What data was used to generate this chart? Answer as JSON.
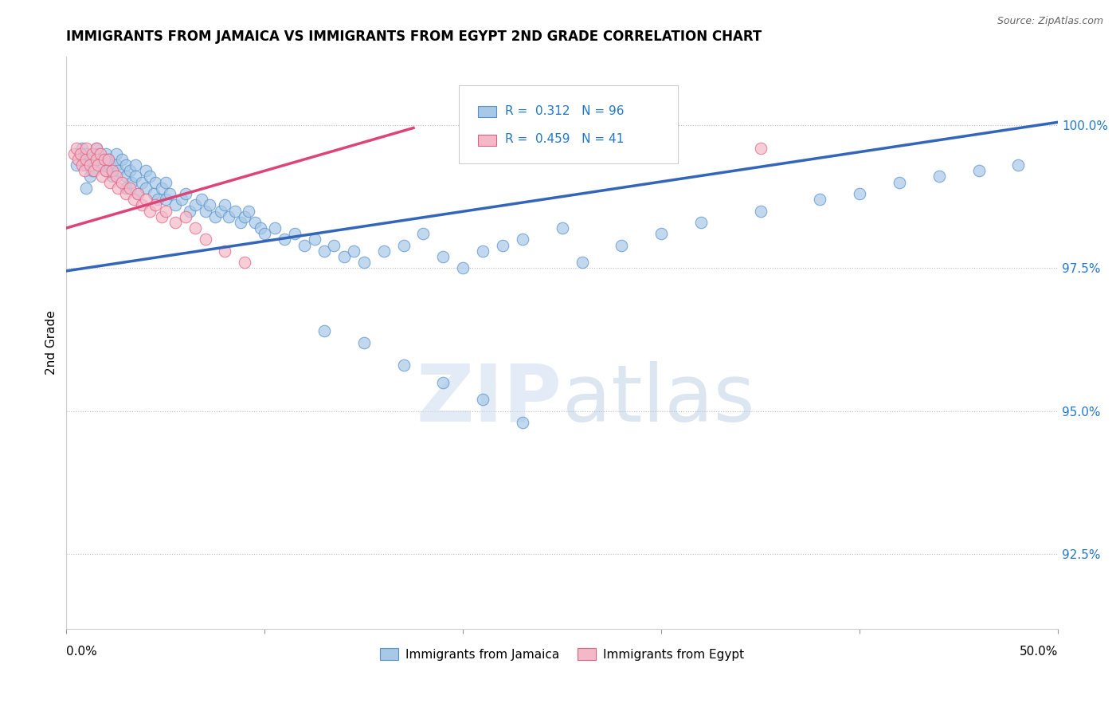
{
  "title": "IMMIGRANTS FROM JAMAICA VS IMMIGRANTS FROM EGYPT 2ND GRADE CORRELATION CHART",
  "source": "Source: ZipAtlas.com",
  "ylabel": "2nd Grade",
  "yticks": [
    92.5,
    95.0,
    97.5,
    100.0
  ],
  "ytick_labels": [
    "92.5%",
    "95.0%",
    "97.5%",
    "100.0%"
  ],
  "xlim": [
    0.0,
    0.5
  ],
  "ylim": [
    91.2,
    101.2
  ],
  "legend_blue_r": "0.312",
  "legend_blue_n": "96",
  "legend_pink_r": "0.459",
  "legend_pink_n": "41",
  "legend_blue_label": "Immigrants from Jamaica",
  "legend_pink_label": "Immigrants from Egypt",
  "watermark_zip": "ZIP",
  "watermark_atlas": "atlas",
  "blue_color": "#a8c8e8",
  "pink_color": "#f4b8c8",
  "blue_edge_color": "#5590c8",
  "pink_edge_color": "#e06080",
  "blue_line_color": "#3366bb",
  "pink_line_color": "#dd4477",
  "blue_line_x0": 0.0,
  "blue_line_x1": 0.5,
  "blue_line_y0": 97.45,
  "blue_line_y1": 100.05,
  "pink_line_x0": 0.0,
  "pink_line_x1": 0.175,
  "pink_line_y0": 98.2,
  "pink_line_y1": 99.95,
  "blue_x": [
    0.005,
    0.007,
    0.008,
    0.009,
    0.01,
    0.01,
    0.01,
    0.012,
    0.013,
    0.015,
    0.015,
    0.016,
    0.018,
    0.02,
    0.02,
    0.021,
    0.022,
    0.023,
    0.025,
    0.025,
    0.026,
    0.028,
    0.03,
    0.03,
    0.03,
    0.032,
    0.033,
    0.035,
    0.035,
    0.036,
    0.038,
    0.04,
    0.04,
    0.042,
    0.044,
    0.045,
    0.046,
    0.048,
    0.05,
    0.05,
    0.052,
    0.055,
    0.058,
    0.06,
    0.062,
    0.065,
    0.068,
    0.07,
    0.072,
    0.075,
    0.078,
    0.08,
    0.082,
    0.085,
    0.088,
    0.09,
    0.092,
    0.095,
    0.098,
    0.1,
    0.105,
    0.11,
    0.115,
    0.12,
    0.125,
    0.13,
    0.135,
    0.14,
    0.145,
    0.15,
    0.16,
    0.17,
    0.18,
    0.19,
    0.2,
    0.21,
    0.22,
    0.23,
    0.25,
    0.26,
    0.28,
    0.3,
    0.32,
    0.35,
    0.38,
    0.4,
    0.42,
    0.44,
    0.46,
    0.48,
    0.13,
    0.15,
    0.17,
    0.19,
    0.21,
    0.23
  ],
  "blue_y": [
    99.3,
    99.5,
    99.6,
    99.4,
    99.5,
    99.3,
    98.9,
    99.1,
    99.2,
    99.4,
    99.6,
    99.5,
    99.3,
    99.5,
    99.2,
    99.4,
    99.3,
    99.1,
    99.5,
    99.3,
    99.2,
    99.4,
    99.3,
    99.1,
    98.9,
    99.2,
    99.0,
    99.3,
    99.1,
    98.8,
    99.0,
    99.2,
    98.9,
    99.1,
    98.8,
    99.0,
    98.7,
    98.9,
    99.0,
    98.7,
    98.8,
    98.6,
    98.7,
    98.8,
    98.5,
    98.6,
    98.7,
    98.5,
    98.6,
    98.4,
    98.5,
    98.6,
    98.4,
    98.5,
    98.3,
    98.4,
    98.5,
    98.3,
    98.2,
    98.1,
    98.2,
    98.0,
    98.1,
    97.9,
    98.0,
    97.8,
    97.9,
    97.7,
    97.8,
    97.6,
    97.8,
    97.9,
    98.1,
    97.7,
    97.5,
    97.8,
    97.9,
    98.0,
    98.2,
    97.6,
    97.9,
    98.1,
    98.3,
    98.5,
    98.7,
    98.8,
    99.0,
    99.1,
    99.2,
    99.3,
    96.4,
    96.2,
    95.8,
    95.5,
    95.2,
    94.8
  ],
  "pink_x": [
    0.004,
    0.005,
    0.006,
    0.007,
    0.008,
    0.009,
    0.01,
    0.01,
    0.012,
    0.013,
    0.014,
    0.015,
    0.015,
    0.016,
    0.017,
    0.018,
    0.019,
    0.02,
    0.021,
    0.022,
    0.023,
    0.025,
    0.026,
    0.028,
    0.03,
    0.032,
    0.034,
    0.036,
    0.038,
    0.04,
    0.042,
    0.045,
    0.048,
    0.05,
    0.055,
    0.06,
    0.065,
    0.07,
    0.08,
    0.09,
    0.35
  ],
  "pink_y": [
    99.5,
    99.6,
    99.4,
    99.5,
    99.3,
    99.2,
    99.4,
    99.6,
    99.3,
    99.5,
    99.2,
    99.4,
    99.6,
    99.3,
    99.5,
    99.1,
    99.4,
    99.2,
    99.4,
    99.0,
    99.2,
    99.1,
    98.9,
    99.0,
    98.8,
    98.9,
    98.7,
    98.8,
    98.6,
    98.7,
    98.5,
    98.6,
    98.4,
    98.5,
    98.3,
    98.4,
    98.2,
    98.0,
    97.8,
    97.6,
    99.6
  ]
}
